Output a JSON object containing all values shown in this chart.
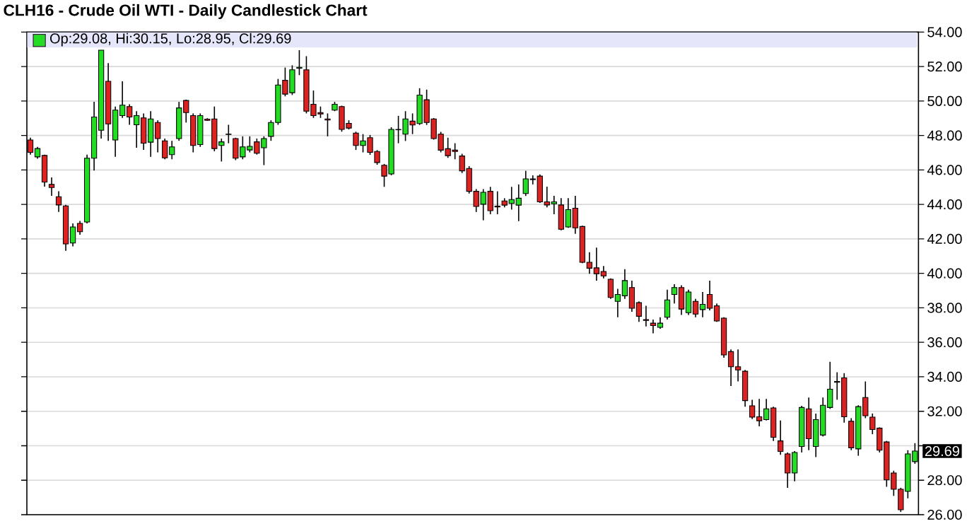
{
  "chart_data": {
    "type": "candlestick",
    "title": "CLH16 - Crude Oil WTI - Daily Candlestick Chart",
    "annotations": [
      "Op:29.08, Hi:30.15, Lo:28.95, Cl:29.69",
      "29.69"
    ],
    "categories": [
      null,
      null,
      null,
      null,
      null,
      null,
      null,
      null,
      null,
      null,
      null,
      null,
      null,
      null,
      null,
      null,
      null,
      null,
      null,
      null,
      null,
      null,
      null,
      null,
      null,
      null,
      null,
      null,
      null,
      null,
      null,
      null,
      null,
      null,
      null,
      null,
      null,
      null,
      null,
      null,
      null,
      null,
      null,
      null,
      null,
      null,
      null,
      null,
      null,
      null,
      null,
      null,
      null,
      null,
      null,
      null,
      null,
      null,
      null,
      null,
      null,
      null,
      null,
      null,
      null,
      null,
      null,
      null,
      null,
      null,
      null,
      null,
      null,
      null,
      null,
      null,
      null,
      null,
      null,
      null,
      null,
      null,
      null,
      null,
      null,
      null,
      null,
      null,
      null,
      null,
      null,
      null,
      null,
      null,
      null,
      null,
      null,
      null,
      null,
      null,
      null,
      null,
      null,
      null,
      null,
      null,
      null,
      null,
      null,
      null,
      null,
      null,
      null,
      null,
      null,
      null,
      null,
      null,
      null,
      null,
      null,
      null,
      null,
      null,
      null,
      null
    ],
    "ohlc": [
      [
        47.74,
        47.87,
        46.89,
        47.02
      ],
      [
        46.76,
        47.34,
        46.65,
        47.24
      ],
      [
        46.84,
        46.89,
        45.03,
        45.3
      ],
      [
        45.16,
        45.56,
        44.5,
        44.98
      ],
      [
        44.45,
        44.76,
        43.57,
        43.97
      ],
      [
        43.91,
        43.97,
        41.31,
        41.71
      ],
      [
        41.76,
        42.9,
        41.57,
        42.69
      ],
      [
        42.9,
        43.04,
        42.24,
        42.42
      ],
      [
        42.98,
        46.89,
        42.9,
        46.68
      ],
      [
        46.68,
        49.95,
        45.96,
        49.07
      ],
      [
        48.3,
        52.95,
        47.82,
        52.95
      ],
      [
        51.14,
        52.2,
        47.69,
        48.67
      ],
      [
        47.74,
        49.68,
        46.76,
        49.47
      ],
      [
        49.15,
        51.14,
        49.02,
        49.76
      ],
      [
        49.68,
        49.81,
        48.62,
        49.07
      ],
      [
        48.62,
        49.41,
        47.29,
        49.15
      ],
      [
        49.02,
        49.28,
        47.16,
        47.55
      ],
      [
        47.61,
        49.41,
        46.76,
        48.96
      ],
      [
        48.75,
        48.88,
        47.02,
        47.82
      ],
      [
        47.69,
        47.82,
        46.62,
        46.7
      ],
      [
        46.89,
        47.69,
        46.62,
        47.34
      ],
      [
        47.82,
        49.95,
        47.69,
        49.6
      ],
      [
        50.03,
        50.08,
        48.75,
        49.33
      ],
      [
        49.15,
        49.28,
        47.02,
        47.42
      ],
      [
        47.47,
        49.28,
        47.34,
        49.15
      ],
      [
        48.95,
        49.0,
        48.85,
        48.88
      ],
      [
        48.96,
        49.68,
        47.08,
        47.24
      ],
      [
        47.42,
        47.82,
        46.49,
        47.63
      ],
      [
        48.08,
        48.62,
        47.55,
        48.06
      ],
      [
        47.82,
        47.87,
        46.57,
        46.68
      ],
      [
        46.76,
        47.95,
        46.62,
        47.34
      ],
      [
        47.16,
        47.95,
        47.02,
        47.37
      ],
      [
        47.63,
        47.82,
        46.89,
        46.97
      ],
      [
        47.29,
        47.95,
        46.28,
        47.82
      ],
      [
        47.95,
        48.88,
        47.69,
        48.75
      ],
      [
        48.75,
        51.28,
        48.62,
        50.93
      ],
      [
        51.2,
        51.94,
        50.27,
        50.4
      ],
      [
        50.48,
        52.07,
        50.35,
        51.81
      ],
      [
        51.9,
        52.95,
        51.5,
        51.95
      ],
      [
        51.81,
        52.6,
        49.28,
        49.41
      ],
      [
        49.81,
        50.61,
        49.02,
        49.15
      ],
      [
        49.33,
        49.68,
        49.02,
        49.25
      ],
      [
        48.96,
        49.28,
        47.95,
        48.9
      ],
      [
        49.47,
        49.95,
        49.41,
        49.81
      ],
      [
        49.68,
        49.73,
        48.22,
        48.35
      ],
      [
        48.7,
        48.88,
        48.35,
        48.43
      ],
      [
        48.14,
        48.22,
        47.16,
        47.42
      ],
      [
        47.42,
        48.08,
        47.02,
        47.69
      ],
      [
        47.87,
        48.03,
        46.88,
        47.02
      ],
      [
        47.07,
        47.15,
        46.3,
        46.43
      ],
      [
        46.27,
        46.35,
        45.02,
        45.64
      ],
      [
        45.77,
        48.48,
        45.69,
        48.35
      ],
      [
        48.35,
        49.14,
        47.55,
        48.33
      ],
      [
        48.08,
        49.41,
        47.68,
        48.96
      ],
      [
        48.83,
        49.28,
        48.08,
        48.61
      ],
      [
        48.69,
        50.74,
        48.61,
        50.34
      ],
      [
        50.07,
        50.66,
        48.61,
        48.75
      ],
      [
        48.96,
        49.01,
        47.76,
        47.82
      ],
      [
        48.08,
        48.21,
        47.02,
        47.15
      ],
      [
        47.23,
        47.87,
        46.7,
        46.83
      ],
      [
        47.15,
        47.55,
        46.62,
        47.07
      ],
      [
        46.81,
        46.94,
        45.82,
        45.95
      ],
      [
        46.09,
        46.22,
        44.63,
        44.76
      ],
      [
        44.76,
        44.89,
        43.56,
        43.88
      ],
      [
        44.01,
        44.89,
        43.08,
        44.7
      ],
      [
        44.76,
        45.02,
        43.43,
        43.64
      ],
      [
        43.9,
        44.76,
        43.43,
        43.85
      ],
      [
        44.2,
        44.36,
        43.83,
        43.96
      ],
      [
        44.06,
        45.02,
        43.7,
        44.28
      ],
      [
        43.96,
        45.16,
        43.03,
        44.36
      ],
      [
        44.63,
        45.95,
        44.49,
        45.48
      ],
      [
        45.48,
        45.69,
        45.16,
        45.44
      ],
      [
        45.64,
        45.74,
        44.09,
        44.15
      ],
      [
        44.15,
        45.03,
        43.83,
        43.97
      ],
      [
        44.04,
        44.5,
        43.43,
        44.15
      ],
      [
        43.97,
        44.36,
        42.5,
        42.56
      ],
      [
        42.69,
        44.36,
        42.64,
        43.7
      ],
      [
        43.78,
        44.5,
        42.29,
        42.64
      ],
      [
        42.72,
        42.77,
        40.59,
        40.64
      ],
      [
        40.64,
        41.23,
        39.98,
        40.3
      ],
      [
        40.32,
        41.49,
        39.58,
        39.98
      ],
      [
        40.11,
        40.43,
        39.71,
        39.85
      ],
      [
        39.66,
        39.71,
        38.52,
        38.6
      ],
      [
        38.38,
        39.1,
        37.45,
        38.78
      ],
      [
        38.7,
        40.24,
        38.52,
        39.58
      ],
      [
        39.18,
        39.58,
        37.77,
        37.98
      ],
      [
        38.3,
        38.38,
        37.19,
        37.51
      ],
      [
        37.32,
        38.12,
        36.92,
        37.27
      ],
      [
        37.11,
        37.32,
        36.52,
        36.97
      ],
      [
        36.87,
        37.45,
        36.79,
        37.11
      ],
      [
        37.45,
        39.05,
        37.32,
        38.46
      ],
      [
        38.78,
        39.37,
        38.25,
        39.18
      ],
      [
        39.18,
        39.31,
        37.59,
        37.93
      ],
      [
        37.72,
        39.05,
        37.59,
        38.92
      ],
      [
        38.38,
        38.52,
        37.45,
        37.64
      ],
      [
        37.9,
        38.92,
        37.45,
        38.2
      ],
      [
        38.78,
        39.58,
        37.85,
        37.98
      ],
      [
        38.12,
        38.25,
        37.19,
        37.24
      ],
      [
        37.4,
        37.45,
        35.11,
        35.27
      ],
      [
        35.46,
        35.59,
        33.47,
        34.58
      ],
      [
        34.58,
        35.59,
        33.73,
        34.4
      ],
      [
        34.32,
        34.4,
        32.27,
        32.62
      ],
      [
        32.32,
        32.67,
        31.55,
        31.66
      ],
      [
        31.68,
        32.72,
        31.13,
        31.45
      ],
      [
        31.52,
        32.72,
        31.47,
        32.14
      ],
      [
        32.19,
        32.27,
        30.28,
        30.49
      ],
      [
        30.28,
        31.47,
        29.48,
        29.67
      ],
      [
        29.53,
        29.61,
        27.56,
        28.42
      ],
      [
        28.42,
        29.69,
        27.94,
        29.61
      ],
      [
        29.96,
        32.32,
        29.61,
        32.22
      ],
      [
        32.14,
        32.8,
        29.74,
        30.41
      ],
      [
        29.96,
        31.87,
        29.34,
        31.52
      ],
      [
        30.62,
        32.8,
        30.54,
        32.35
      ],
      [
        32.22,
        34.87,
        32.14,
        33.28
      ],
      [
        33.73,
        34.26,
        32.67,
        33.68
      ],
      [
        33.94,
        34.21,
        31.34,
        31.68
      ],
      [
        31.42,
        31.6,
        29.74,
        29.88
      ],
      [
        29.82,
        32.35,
        29.42,
        32.27
      ],
      [
        32.8,
        33.73,
        31.6,
        31.74
      ],
      [
        31.66,
        31.87,
        30.67,
        30.94
      ],
      [
        31.02,
        31.07,
        29.61,
        29.74
      ],
      [
        30.22,
        30.28,
        27.62,
        28.02
      ],
      [
        28.42,
        28.55,
        27.09,
        27.48
      ],
      [
        27.48,
        27.56,
        26.16,
        26.29
      ],
      [
        27.35,
        29.74,
        26.95,
        29.53
      ],
      [
        29.08,
        30.15,
        28.95,
        29.69
      ]
    ],
    "ylim": [
      26,
      54
    ],
    "yticks": [
      {
        "value": 26,
        "label": "26.00"
      },
      {
        "value": 28,
        "label": "28.00"
      },
      {
        "value": 30,
        "label": null
      },
      {
        "value": 32,
        "label": "32.00"
      },
      {
        "value": 34,
        "label": "34.00"
      },
      {
        "value": 36,
        "label": "36.00"
      },
      {
        "value": 38,
        "label": "38.00"
      },
      {
        "value": 40,
        "label": "40.00"
      },
      {
        "value": 42,
        "label": "42.00"
      },
      {
        "value": 44,
        "label": "44.00"
      },
      {
        "value": 46,
        "label": "46.00"
      },
      {
        "value": 48,
        "label": "48.00"
      },
      {
        "value": 50,
        "label": "50.00"
      },
      {
        "value": 52,
        "label": "52.00"
      },
      {
        "value": 54,
        "label": "54.00"
      }
    ],
    "grid": "y",
    "tick_labels": "y"
  }
}
